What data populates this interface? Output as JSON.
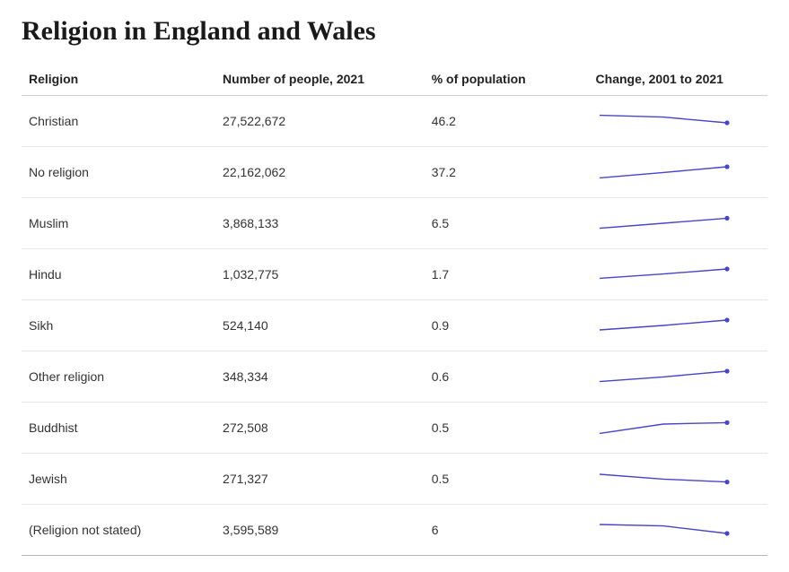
{
  "title": "Religion in England and Wales",
  "columns": [
    {
      "key": "religion",
      "label": "Religion"
    },
    {
      "key": "number",
      "label": "Number of people, 2021"
    },
    {
      "key": "pct",
      "label": "% of population"
    },
    {
      "key": "change",
      "label": "Change, 2001 to 2021"
    }
  ],
  "spark": {
    "width": 150,
    "height": 28,
    "stroke": "#4845c7",
    "stroke_width": 1.4,
    "dot_radius": 2.6,
    "dot_fill": "#4845c7",
    "x_domain": [
      2001,
      2021
    ],
    "y_domain": [
      0,
      1
    ],
    "padding_x": 4,
    "padding_y": 4
  },
  "rows": [
    {
      "religion": "Christian",
      "number": "27,522,672",
      "pct": "46.2",
      "series": [
        {
          "x": 2001,
          "y": 0.82
        },
        {
          "x": 2011,
          "y": 0.72
        },
        {
          "x": 2021,
          "y": 0.4
        }
      ]
    },
    {
      "religion": "No religion",
      "number": "22,162,062",
      "pct": "37.2",
      "series": [
        {
          "x": 2001,
          "y": 0.18
        },
        {
          "x": 2011,
          "y": 0.48
        },
        {
          "x": 2021,
          "y": 0.8
        }
      ]
    },
    {
      "religion": "Muslim",
      "number": "3,868,133",
      "pct": "6.5",
      "series": [
        {
          "x": 2001,
          "y": 0.22
        },
        {
          "x": 2011,
          "y": 0.5
        },
        {
          "x": 2021,
          "y": 0.78
        }
      ]
    },
    {
      "religion": "Hindu",
      "number": "1,032,775",
      "pct": "1.7",
      "series": [
        {
          "x": 2001,
          "y": 0.28
        },
        {
          "x": 2011,
          "y": 0.52
        },
        {
          "x": 2021,
          "y": 0.8
        }
      ]
    },
    {
      "religion": "Sikh",
      "number": "524,140",
      "pct": "0.9",
      "series": [
        {
          "x": 2001,
          "y": 0.25
        },
        {
          "x": 2011,
          "y": 0.5
        },
        {
          "x": 2021,
          "y": 0.8
        }
      ]
    },
    {
      "religion": "Other religion",
      "number": "348,334",
      "pct": "0.6",
      "series": [
        {
          "x": 2001,
          "y": 0.22
        },
        {
          "x": 2011,
          "y": 0.48
        },
        {
          "x": 2021,
          "y": 0.8
        }
      ]
    },
    {
      "religion": "Buddhist",
      "number": "272,508",
      "pct": "0.5",
      "series": [
        {
          "x": 2001,
          "y": 0.18
        },
        {
          "x": 2011,
          "y": 0.7
        },
        {
          "x": 2021,
          "y": 0.78
        }
      ]
    },
    {
      "religion": "Jewish",
      "number": "271,327",
      "pct": "0.5",
      "series": [
        {
          "x": 2001,
          "y": 0.75
        },
        {
          "x": 2011,
          "y": 0.48
        },
        {
          "x": 2021,
          "y": 0.32
        }
      ]
    },
    {
      "religion": "(Religion not stated)",
      "number": "3,595,589",
      "pct": "6",
      "series": [
        {
          "x": 2001,
          "y": 0.8
        },
        {
          "x": 2011,
          "y": 0.72
        },
        {
          "x": 2021,
          "y": 0.3
        }
      ]
    }
  ]
}
